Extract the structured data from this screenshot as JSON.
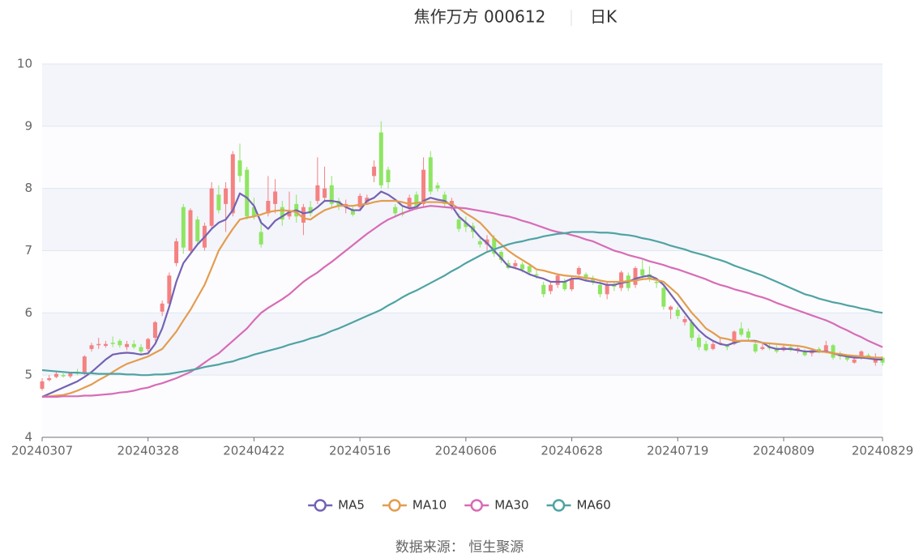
{
  "chart_data": {
    "type": "candlestick",
    "title": "焦作万方 000612",
    "period": "日K",
    "source": "数据来源： 恒生聚源",
    "categories": [
      "20240307",
      null,
      null,
      null,
      null,
      null,
      null,
      null,
      null,
      null,
      null,
      null,
      null,
      null,
      null,
      "20240328",
      null,
      null,
      null,
      null,
      null,
      null,
      null,
      null,
      null,
      null,
      null,
      null,
      null,
      null,
      "20240422",
      null,
      null,
      null,
      null,
      null,
      null,
      null,
      null,
      null,
      null,
      null,
      null,
      null,
      null,
      "20240516",
      null,
      null,
      null,
      null,
      null,
      null,
      null,
      null,
      null,
      null,
      null,
      null,
      null,
      null,
      "20240606",
      null,
      null,
      null,
      null,
      null,
      null,
      null,
      null,
      null,
      null,
      null,
      null,
      null,
      null,
      "20240628",
      null,
      null,
      null,
      null,
      null,
      null,
      null,
      null,
      null,
      null,
      null,
      null,
      null,
      null,
      "20240719",
      null,
      null,
      null,
      null,
      null,
      null,
      null,
      null,
      null,
      null,
      null,
      null,
      null,
      null,
      "20240809",
      null,
      null,
      null,
      null,
      null,
      null,
      null,
      null,
      null,
      null,
      null,
      null,
      null,
      "20240829"
    ],
    "ohlc": {
      "open": [
        4.78,
        4.92,
        4.97,
        5.0,
        4.98,
        5.05,
        5.02,
        5.42,
        5.48,
        5.47,
        5.52,
        5.55,
        5.45,
        5.5,
        5.45,
        5.42,
        5.6,
        6.02,
        6.15,
        6.8,
        7.7,
        7.0,
        7.5,
        7.05,
        7.4,
        7.9,
        7.75,
        7.6,
        8.45,
        8.3,
        7.7,
        7.3,
        7.6,
        7.75,
        7.7,
        7.55,
        7.75,
        7.45,
        7.7,
        7.8,
        7.85,
        8.05,
        7.8,
        7.7,
        7.65,
        7.7,
        7.78,
        8.2,
        8.9,
        8.3,
        7.7,
        7.6,
        7.7,
        7.9,
        7.75,
        8.5,
        8.05,
        7.9,
        7.72,
        7.5,
        7.45,
        7.4,
        7.15,
        7.1,
        7.2,
        6.98,
        6.8,
        6.75,
        6.78,
        6.75,
        6.62,
        6.45,
        6.35,
        6.45,
        6.5,
        6.38,
        6.62,
        6.62,
        6.55,
        6.45,
        6.3,
        6.45,
        6.4,
        6.6,
        6.45,
        6.7,
        6.62,
        6.5,
        6.4,
        6.05,
        6.05,
        5.85,
        5.85,
        5.6,
        5.5,
        5.42,
        5.5,
        5.48,
        5.5,
        5.75,
        5.7,
        5.5,
        5.42,
        5.45,
        5.42,
        5.4,
        5.45,
        5.4,
        5.38,
        5.35,
        5.42,
        5.38,
        5.48,
        5.35,
        5.3,
        5.2,
        5.3,
        5.32,
        5.2,
        5.28
      ],
      "close": [
        4.9,
        4.95,
        5.02,
        4.98,
        5.03,
        5.02,
        5.3,
        5.48,
        5.5,
        5.5,
        5.5,
        5.48,
        5.5,
        5.45,
        5.38,
        5.58,
        5.85,
        6.15,
        6.6,
        7.15,
        7.05,
        7.65,
        7.15,
        7.4,
        8.0,
        7.65,
        8.0,
        8.55,
        8.2,
        7.55,
        7.55,
        7.1,
        7.8,
        7.95,
        7.5,
        7.65,
        7.55,
        7.7,
        7.6,
        8.05,
        8.0,
        7.75,
        7.72,
        7.75,
        7.58,
        7.88,
        7.85,
        8.35,
        8.05,
        8.1,
        7.6,
        7.58,
        7.85,
        7.7,
        8.3,
        7.95,
        8.0,
        7.75,
        7.8,
        7.35,
        7.38,
        7.3,
        7.1,
        7.18,
        6.95,
        6.85,
        6.72,
        6.8,
        6.7,
        6.65,
        6.6,
        6.3,
        6.45,
        6.6,
        6.38,
        6.55,
        6.72,
        6.55,
        6.5,
        6.3,
        6.45,
        6.42,
        6.65,
        6.4,
        6.72,
        6.6,
        6.55,
        6.48,
        6.1,
        6.1,
        5.95,
        5.9,
        5.6,
        5.45,
        5.4,
        5.5,
        5.52,
        5.45,
        5.7,
        5.65,
        5.6,
        5.38,
        5.45,
        5.43,
        5.38,
        5.45,
        5.4,
        5.43,
        5.32,
        5.4,
        5.38,
        5.48,
        5.28,
        5.3,
        5.25,
        5.25,
        5.38,
        5.28,
        5.28,
        5.2
      ],
      "low": [
        4.75,
        4.9,
        4.95,
        4.96,
        4.95,
        5.0,
        5.0,
        5.38,
        5.42,
        5.44,
        5.45,
        5.44,
        5.4,
        5.42,
        5.33,
        5.38,
        5.55,
        5.95,
        6.1,
        6.75,
        6.95,
        6.98,
        7.1,
        7.0,
        7.35,
        7.6,
        7.3,
        7.55,
        8.1,
        7.5,
        7.5,
        7.05,
        7.55,
        7.6,
        7.4,
        7.5,
        7.45,
        7.25,
        7.55,
        7.75,
        7.8,
        7.7,
        7.65,
        7.6,
        7.55,
        7.65,
        7.75,
        8.1,
        8.0,
        8.0,
        7.55,
        7.55,
        7.65,
        7.65,
        7.7,
        7.9,
        7.95,
        7.7,
        7.65,
        7.3,
        7.3,
        7.2,
        7.05,
        7.0,
        6.9,
        6.8,
        6.7,
        6.7,
        6.65,
        6.62,
        6.55,
        6.25,
        6.3,
        6.4,
        6.35,
        6.35,
        6.6,
        6.5,
        6.45,
        6.25,
        6.22,
        6.35,
        6.35,
        6.35,
        6.4,
        6.55,
        6.5,
        6.4,
        6.05,
        5.9,
        5.9,
        5.8,
        5.55,
        5.4,
        5.38,
        5.4,
        5.48,
        5.4,
        5.48,
        5.62,
        5.55,
        5.35,
        5.4,
        5.4,
        5.35,
        5.38,
        5.38,
        5.35,
        5.3,
        5.3,
        5.35,
        5.35,
        5.25,
        5.25,
        5.22,
        5.18,
        5.25,
        5.25,
        5.15,
        5.15
      ],
      "high": [
        4.95,
        5.0,
        5.05,
        5.03,
        5.05,
        5.1,
        5.32,
        5.52,
        5.6,
        5.55,
        5.62,
        5.58,
        5.55,
        5.56,
        5.5,
        5.6,
        5.87,
        6.2,
        6.65,
        7.2,
        7.75,
        7.68,
        7.55,
        7.45,
        8.1,
        8.05,
        8.1,
        8.6,
        8.72,
        8.35,
        7.85,
        7.5,
        8.2,
        8.15,
        7.8,
        7.95,
        7.9,
        7.75,
        7.8,
        8.5,
        8.35,
        8.2,
        7.85,
        7.82,
        7.7,
        7.92,
        7.9,
        8.45,
        9.08,
        8.35,
        7.75,
        7.7,
        7.9,
        7.95,
        8.5,
        8.6,
        8.1,
        7.95,
        7.85,
        7.6,
        7.55,
        7.45,
        7.2,
        7.25,
        7.25,
        7.0,
        6.85,
        6.85,
        6.82,
        6.8,
        6.68,
        6.5,
        6.5,
        6.62,
        6.55,
        6.6,
        6.75,
        6.65,
        6.6,
        6.5,
        6.5,
        6.5,
        6.68,
        6.65,
        6.75,
        6.85,
        6.75,
        6.55,
        6.45,
        6.12,
        6.1,
        5.95,
        5.9,
        5.65,
        5.55,
        5.55,
        5.6,
        5.5,
        5.72,
        5.85,
        5.75,
        5.55,
        5.5,
        5.5,
        5.48,
        5.48,
        5.5,
        5.45,
        5.42,
        5.42,
        5.45,
        5.55,
        5.5,
        5.38,
        5.32,
        5.28,
        5.4,
        5.35,
        5.35,
        5.3
      ]
    },
    "up_color": "#f58181",
    "down_color": "#8ee562",
    "series": [
      {
        "name": "MA5",
        "color": "#7462b2",
        "values": [
          4.65,
          4.7,
          4.75,
          4.8,
          4.85,
          4.9,
          4.97,
          5.05,
          5.15,
          5.25,
          5.33,
          5.35,
          5.36,
          5.35,
          5.33,
          5.35,
          5.5,
          5.75,
          6.1,
          6.5,
          6.8,
          6.95,
          7.1,
          7.22,
          7.35,
          7.45,
          7.5,
          7.65,
          7.92,
          7.85,
          7.72,
          7.45,
          7.35,
          7.48,
          7.55,
          7.62,
          7.65,
          7.6,
          7.62,
          7.7,
          7.8,
          7.8,
          7.78,
          7.7,
          7.65,
          7.65,
          7.8,
          7.85,
          7.95,
          7.9,
          7.82,
          7.72,
          7.68,
          7.7,
          7.8,
          7.85,
          7.82,
          7.8,
          7.72,
          7.55,
          7.45,
          7.35,
          7.22,
          7.12,
          7.0,
          6.88,
          6.75,
          6.72,
          6.68,
          6.62,
          6.58,
          6.55,
          6.5,
          6.5,
          6.5,
          6.55,
          6.55,
          6.52,
          6.5,
          6.48,
          6.45,
          6.45,
          6.48,
          6.5,
          6.55,
          6.58,
          6.6,
          6.55,
          6.45,
          6.3,
          6.15,
          6.0,
          5.85,
          5.72,
          5.62,
          5.55,
          5.5,
          5.48,
          5.52,
          5.55,
          5.55,
          5.55,
          5.52,
          5.45,
          5.42,
          5.42,
          5.42,
          5.4,
          5.38,
          5.38,
          5.38,
          5.38,
          5.35,
          5.32,
          5.3,
          5.28,
          5.28,
          5.27,
          5.25,
          5.25
        ]
      },
      {
        "name": "MA10",
        "color": "#e49c4e",
        "values": [
          4.65,
          4.66,
          4.67,
          4.68,
          4.71,
          4.75,
          4.8,
          4.85,
          4.92,
          4.98,
          5.05,
          5.12,
          5.18,
          5.22,
          5.26,
          5.3,
          5.36,
          5.42,
          5.56,
          5.7,
          5.88,
          6.05,
          6.25,
          6.45,
          6.72,
          7.0,
          7.18,
          7.35,
          7.5,
          7.53,
          7.55,
          7.58,
          7.62,
          7.64,
          7.65,
          7.64,
          7.62,
          7.52,
          7.5,
          7.58,
          7.65,
          7.69,
          7.72,
          7.72,
          7.72,
          7.74,
          7.75,
          7.78,
          7.8,
          7.8,
          7.8,
          7.78,
          7.75,
          7.77,
          7.78,
          7.78,
          7.78,
          7.77,
          7.75,
          7.68,
          7.6,
          7.53,
          7.45,
          7.33,
          7.2,
          7.1,
          7.0,
          6.92,
          6.85,
          6.78,
          6.7,
          6.68,
          6.65,
          6.62,
          6.6,
          6.59,
          6.58,
          6.56,
          6.55,
          6.52,
          6.5,
          6.5,
          6.5,
          6.51,
          6.52,
          6.54,
          6.55,
          6.53,
          6.5,
          6.4,
          6.3,
          6.15,
          6.0,
          5.88,
          5.75,
          5.68,
          5.6,
          5.58,
          5.55,
          5.55,
          5.55,
          5.54,
          5.52,
          5.51,
          5.5,
          5.49,
          5.48,
          5.47,
          5.45,
          5.42,
          5.38,
          5.37,
          5.35,
          5.34,
          5.32,
          5.31,
          5.3,
          5.29,
          5.28,
          5.28
        ]
      },
      {
        "name": "MA30",
        "color": "#d86bb6",
        "values": [
          4.65,
          4.65,
          4.65,
          4.66,
          4.66,
          4.66,
          4.67,
          4.67,
          4.68,
          4.69,
          4.7,
          4.72,
          4.73,
          4.75,
          4.78,
          4.8,
          4.84,
          4.87,
          4.91,
          4.95,
          5.0,
          5.05,
          5.12,
          5.2,
          5.28,
          5.35,
          5.45,
          5.55,
          5.65,
          5.75,
          5.88,
          6.0,
          6.08,
          6.15,
          6.22,
          6.3,
          6.4,
          6.5,
          6.58,
          6.65,
          6.74,
          6.82,
          6.91,
          7.0,
          7.09,
          7.18,
          7.27,
          7.35,
          7.43,
          7.5,
          7.55,
          7.6,
          7.64,
          7.68,
          7.7,
          7.72,
          7.71,
          7.7,
          7.69,
          7.69,
          7.68,
          7.66,
          7.64,
          7.62,
          7.6,
          7.57,
          7.55,
          7.52,
          7.48,
          7.45,
          7.41,
          7.37,
          7.33,
          7.3,
          7.28,
          7.25,
          7.22,
          7.18,
          7.15,
          7.1,
          7.05,
          7.0,
          6.97,
          6.93,
          6.9,
          6.87,
          6.83,
          6.8,
          6.77,
          6.73,
          6.7,
          6.66,
          6.62,
          6.58,
          6.54,
          6.49,
          6.45,
          6.42,
          6.38,
          6.35,
          6.32,
          6.28,
          6.25,
          6.21,
          6.16,
          6.12,
          6.08,
          6.04,
          6.0,
          5.96,
          5.92,
          5.88,
          5.83,
          5.77,
          5.72,
          5.66,
          5.61,
          5.55,
          5.5,
          5.45
        ]
      },
      {
        "name": "MA60",
        "color": "#4fa3a3",
        "values": [
          5.08,
          5.07,
          5.06,
          5.05,
          5.04,
          5.04,
          5.03,
          5.03,
          5.02,
          5.02,
          5.02,
          5.02,
          5.01,
          5.01,
          5.0,
          5.0,
          5.01,
          5.01,
          5.02,
          5.04,
          5.06,
          5.08,
          5.1,
          5.13,
          5.15,
          5.17,
          5.2,
          5.22,
          5.26,
          5.29,
          5.33,
          5.36,
          5.39,
          5.42,
          5.45,
          5.49,
          5.52,
          5.55,
          5.59,
          5.62,
          5.66,
          5.71,
          5.75,
          5.8,
          5.85,
          5.9,
          5.95,
          6.0,
          6.05,
          6.12,
          6.18,
          6.25,
          6.31,
          6.36,
          6.42,
          6.48,
          6.54,
          6.6,
          6.67,
          6.73,
          6.8,
          6.86,
          6.92,
          6.98,
          7.02,
          7.06,
          7.1,
          7.13,
          7.15,
          7.18,
          7.2,
          7.23,
          7.25,
          7.27,
          7.28,
          7.3,
          7.3,
          7.3,
          7.3,
          7.29,
          7.29,
          7.28,
          7.26,
          7.25,
          7.23,
          7.2,
          7.18,
          7.15,
          7.12,
          7.08,
          7.05,
          7.02,
          6.98,
          6.95,
          6.92,
          6.88,
          6.85,
          6.81,
          6.76,
          6.72,
          6.68,
          6.64,
          6.6,
          6.55,
          6.5,
          6.45,
          6.4,
          6.35,
          6.3,
          6.27,
          6.23,
          6.2,
          6.17,
          6.15,
          6.12,
          6.1,
          6.07,
          6.05,
          6.02,
          6.0
        ]
      }
    ],
    "ylim": [
      4,
      10
    ],
    "yticks": [
      4,
      5,
      6,
      7,
      8,
      9,
      10
    ],
    "grid": true,
    "split_area": true,
    "legend": "bottom"
  }
}
